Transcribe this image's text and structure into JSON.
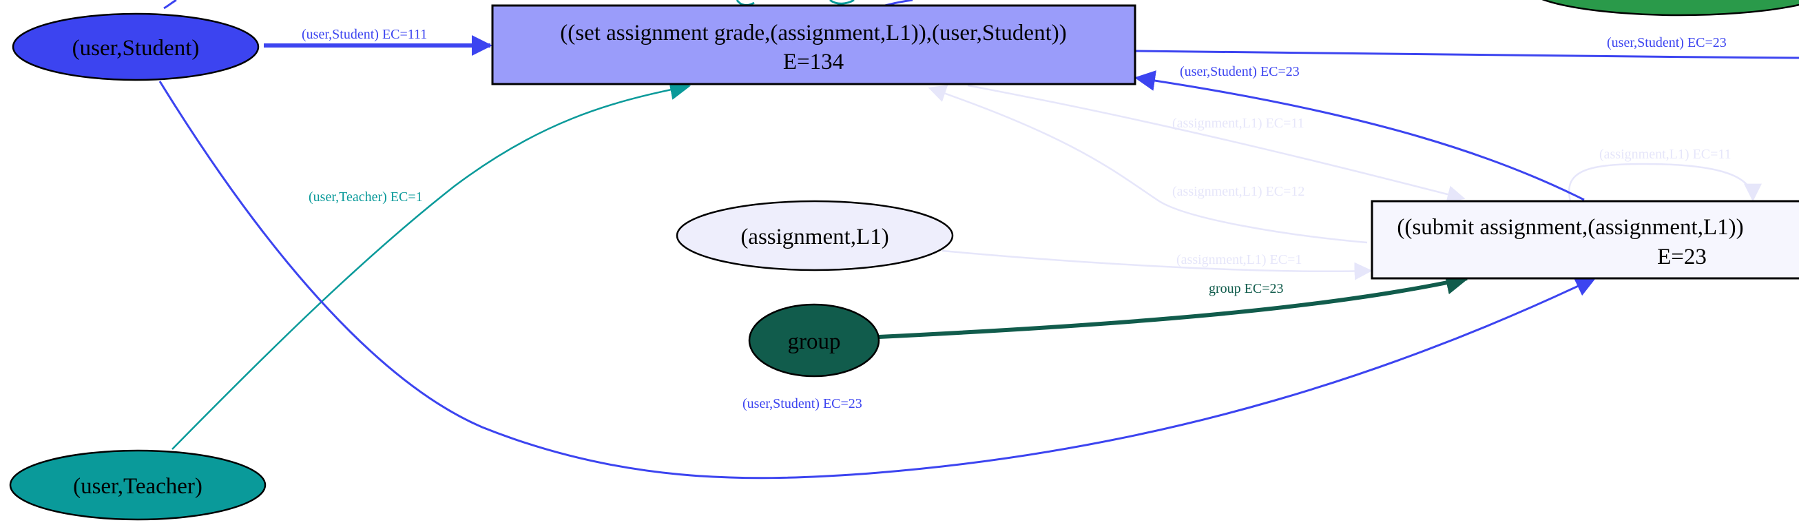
{
  "colors": {
    "student": "#3c44f0",
    "student_fill": "#3c44f0",
    "teacher": "#0a9a9a",
    "teacher_fill": "#0a9a9a",
    "group": "#115c4c",
    "group_fill": "#115c4c",
    "faint": "#e6e6fa",
    "faint_text": "#e6e6fa",
    "set_grade_fill": "#9a9cfa",
    "submit_fill": "#f6f6fe",
    "assignment_fill": "#eeeefc",
    "top_right_green": "#2a9a4a",
    "black": "#000000"
  },
  "nodes": {
    "user_student": {
      "label": "(user,Student)"
    },
    "user_teacher": {
      "label": "(user,Teacher)"
    },
    "assignment_l1": {
      "label": "(assignment,L1)"
    },
    "group": {
      "label": "group"
    },
    "set_grade": {
      "line1": "((set assignment grade,(assignment,L1)),(user,Student))",
      "line2": "E=134"
    },
    "submit": {
      "line1": "((submit assignment,(assignment,L1))",
      "line2": "E=23"
    }
  },
  "edges": {
    "student_to_setgrade": "(user,Student) EC=111",
    "teacher_to_setgrade": "(user,Teacher) EC=1",
    "setgrade_to_right": "(user,Student) EC=23",
    "submit_to_setgrade": "(user,Student) EC=23",
    "setgrade_to_submit_a": "(assignment,L1) EC=11",
    "setgrade_to_submit_b": "(assignment,L1) EC=12",
    "submit_self_loop": "(assignment,L1) EC=11",
    "assignment_to_submit": "(assignment,L1) EC=1",
    "group_to_submit": "group EC=23",
    "student_to_submit": "(user,Student) EC=23"
  }
}
